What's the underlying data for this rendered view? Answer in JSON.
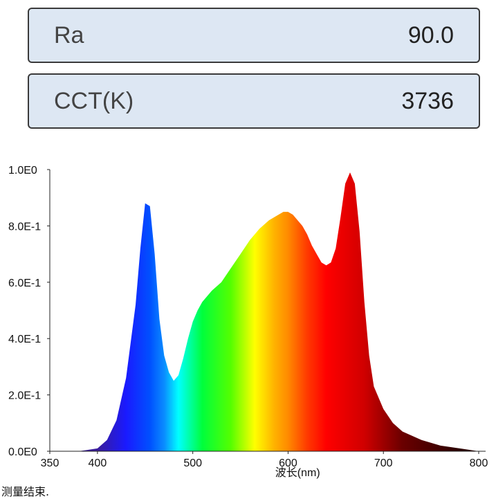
{
  "metrics": [
    {
      "label": "Ra",
      "value": "90.0"
    },
    {
      "label": "CCT(K)",
      "value": "3736"
    }
  ],
  "chart_data": {
    "type": "area",
    "xlabel": "波长(nm)",
    "ylabel": "",
    "xlim": [
      350,
      800
    ],
    "ylim": [
      0,
      1.0
    ],
    "x_ticks": [
      350,
      400,
      500,
      600,
      700,
      800
    ],
    "y_ticks": [
      {
        "value": 0.0,
        "label": "0.0E0"
      },
      {
        "value": 0.2,
        "label": "2.0E-1"
      },
      {
        "value": 0.4,
        "label": "4.0E-1"
      },
      {
        "value": 0.6,
        "label": "6.0E-1"
      },
      {
        "value": 0.8,
        "label": "8.0E-1"
      },
      {
        "value": 1.0,
        "label": "1.0E0"
      }
    ],
    "series": [
      {
        "x": [
          380,
          400,
          410,
          420,
          430,
          440,
          445,
          450,
          455,
          460,
          465,
          470,
          475,
          480,
          485,
          490,
          495,
          500,
          505,
          510,
          515,
          520,
          530,
          540,
          550,
          560,
          570,
          580,
          590,
          595,
          600,
          605,
          610,
          615,
          620,
          625,
          630,
          635,
          640,
          645,
          650,
          655,
          660,
          665,
          670,
          675,
          680,
          685,
          690,
          700,
          710,
          720,
          740,
          760,
          780,
          800
        ],
        "y": [
          0.0,
          0.01,
          0.04,
          0.11,
          0.26,
          0.52,
          0.72,
          0.88,
          0.87,
          0.7,
          0.47,
          0.34,
          0.28,
          0.25,
          0.27,
          0.33,
          0.4,
          0.46,
          0.5,
          0.53,
          0.55,
          0.57,
          0.6,
          0.65,
          0.7,
          0.75,
          0.79,
          0.82,
          0.84,
          0.85,
          0.85,
          0.84,
          0.82,
          0.8,
          0.77,
          0.73,
          0.7,
          0.67,
          0.66,
          0.67,
          0.72,
          0.83,
          0.95,
          0.99,
          0.95,
          0.78,
          0.53,
          0.34,
          0.23,
          0.15,
          0.1,
          0.07,
          0.04,
          0.02,
          0.01,
          0.0
        ]
      }
    ],
    "grid": false,
    "legend": "none"
  },
  "status_text": "测量结束."
}
